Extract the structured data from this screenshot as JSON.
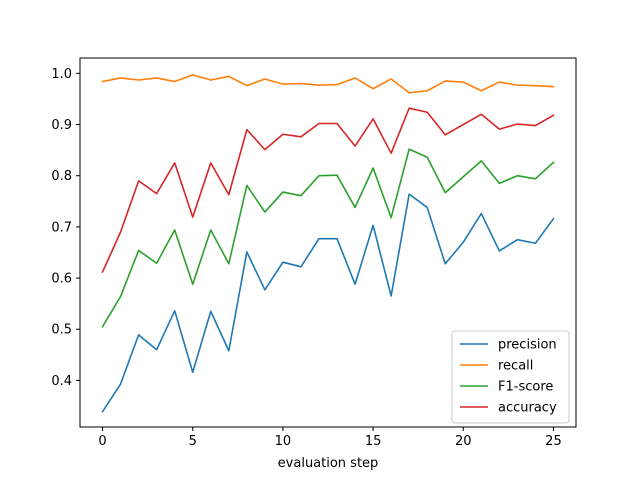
{
  "chart_data": {
    "type": "line",
    "title": "",
    "xlabel": "evaluation step",
    "ylabel": "",
    "xlim": [
      -1.25,
      26.25
    ],
    "ylim": [
      0.309,
      1.03
    ],
    "xticks": [
      0,
      5,
      10,
      15,
      20,
      25
    ],
    "yticks": [
      0.4,
      0.5,
      0.6,
      0.7,
      0.8,
      0.9,
      1.0
    ],
    "xtick_labels": [
      "0",
      "5",
      "10",
      "15",
      "20",
      "25"
    ],
    "ytick_labels": [
      "0.4",
      "0.5",
      "0.6",
      "0.7",
      "0.8",
      "0.9",
      "1.0"
    ],
    "grid": false,
    "legend_position": "lower-right",
    "x": [
      0,
      1,
      2,
      3,
      4,
      5,
      6,
      7,
      8,
      9,
      10,
      11,
      12,
      13,
      14,
      15,
      16,
      17,
      18,
      19,
      20,
      21,
      22,
      23,
      24,
      25
    ],
    "series": [
      {
        "name": "precision",
        "color": "#1f77b4",
        "values": [
          0.339,
          0.393,
          0.489,
          0.46,
          0.536,
          0.416,
          0.535,
          0.458,
          0.651,
          0.577,
          0.631,
          0.622,
          0.677,
          0.677,
          0.588,
          0.703,
          0.565,
          0.764,
          0.738,
          0.628,
          0.67,
          0.726,
          0.653,
          0.675,
          0.668,
          0.716
        ]
      },
      {
        "name": "recall",
        "color": "#ff7f0e",
        "values": [
          0.984,
          0.991,
          0.987,
          0.991,
          0.984,
          0.997,
          0.987,
          0.994,
          0.976,
          0.989,
          0.979,
          0.98,
          0.977,
          0.978,
          0.991,
          0.97,
          0.989,
          0.962,
          0.966,
          0.985,
          0.983,
          0.966,
          0.983,
          0.977,
          0.976,
          0.974
        ]
      },
      {
        "name": "F1-score",
        "color": "#2ca02c",
        "values": [
          0.505,
          0.564,
          0.654,
          0.629,
          0.694,
          0.588,
          0.694,
          0.628,
          0.781,
          0.729,
          0.768,
          0.761,
          0.8,
          0.801,
          0.738,
          0.815,
          0.718,
          0.852,
          0.836,
          0.767,
          0.798,
          0.829,
          0.785,
          0.8,
          0.794,
          0.826
        ]
      },
      {
        "name": "accuracy",
        "color": "#d62728",
        "values": [
          0.612,
          0.69,
          0.79,
          0.765,
          0.825,
          0.719,
          0.825,
          0.763,
          0.89,
          0.851,
          0.881,
          0.876,
          0.902,
          0.902,
          0.858,
          0.911,
          0.844,
          0.932,
          0.924,
          0.88,
          0.9,
          0.92,
          0.891,
          0.901,
          0.898,
          0.918
        ]
      }
    ]
  }
}
